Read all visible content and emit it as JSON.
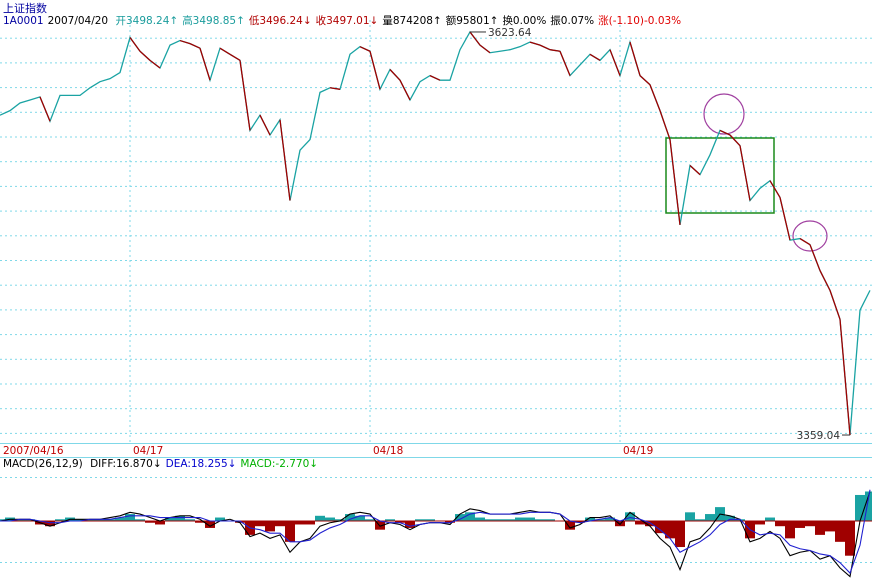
{
  "chart_data": [
    {
      "type": "line",
      "title": "上证指数",
      "code": "1A0001",
      "date": "2007/04/20",
      "quote": [
        {
          "text": "开3498.24↑",
          "color": "#1a9c9c"
        },
        {
          "text": "高3498.85↑",
          "color": "#1a9c9c"
        },
        {
          "text": "低3496.24↓",
          "color": "#b00000"
        },
        {
          "text": "收3497.01↓",
          "color": "#b00000"
        },
        {
          "text": "量874208↑",
          "color": "#000000"
        },
        {
          "text": "额95801↑",
          "color": "#000000"
        },
        {
          "text": "换0.00%",
          "color": "#000000"
        },
        {
          "text": "振0.07%",
          "color": "#000000"
        },
        {
          "text": "涨(-1.10)-0.03%",
          "color": "#e00000"
        }
      ],
      "day_labels": [
        {
          "label": "2007/04/16",
          "index": 0
        },
        {
          "label": "04/17",
          "index": 13
        },
        {
          "label": "04/18",
          "index": 37
        },
        {
          "label": "04/19",
          "index": 62
        }
      ],
      "high_label": "3623.64",
      "low_label": "3359.04",
      "up_color": "#1aa3a3",
      "down_color": "#a00000",
      "ylim": [
        3353.8,
        3631.5
      ],
      "values": [
        3569,
        3572,
        3577,
        3579,
        3581,
        3565,
        3582,
        3582,
        3582,
        3587,
        3591,
        3593,
        3597,
        3620,
        3611,
        3605,
        3600,
        3615,
        3618,
        3616,
        3613,
        3592,
        3613,
        3609,
        3605,
        3559,
        3569,
        3556,
        3566,
        3513,
        3546,
        3553,
        3584,
        3587,
        3586,
        3609,
        3614,
        3611,
        3586,
        3599,
        3592,
        3579,
        3591,
        3595,
        3592,
        3592,
        3612,
        3623.64,
        3615,
        3610,
        3611,
        3612,
        3614,
        3617,
        3615,
        3612,
        3611,
        3595,
        3602,
        3609,
        3605,
        3612,
        3595,
        3617,
        3595,
        3589,
        3572,
        3553,
        3497,
        3536,
        3530,
        3543,
        3559,
        3556,
        3549,
        3513,
        3521,
        3526,
        3515,
        3487,
        3488,
        3484,
        3467,
        3454,
        3435,
        3359.04,
        3441,
        3454
      ]
    },
    {
      "type": "macd",
      "title": "MACD(26,12,9)",
      "readouts": [
        {
          "text": "DIFF:16.870↓",
          "color": "#000000"
        },
        {
          "text": "DEA:18.255↓",
          "color": "#0000cc"
        },
        {
          "text": "MACD:-2.770↓",
          "color": "#00b000"
        }
      ],
      "up_color": "#1aa3a3",
      "down_color": "#a00000",
      "ylim": [
        -34,
        34
      ],
      "series": [
        {
          "name": "DIFF",
          "color": "#000000",
          "values": [
            0,
            1,
            1,
            1,
            -1,
            -3,
            -1,
            1,
            1,
            1,
            1,
            2,
            3,
            5,
            4,
            2,
            0,
            2,
            3,
            3,
            1,
            -3,
            0,
            1,
            -1,
            -9,
            -7,
            -10,
            -8,
            -18,
            -12,
            -10,
            -3,
            -1,
            0,
            4,
            5,
            4,
            -3,
            -1,
            -2,
            -5,
            -2,
            -1,
            -1,
            -2,
            4,
            7,
            6,
            4,
            4,
            4,
            5,
            6,
            5,
            5,
            4,
            -4,
            -2,
            2,
            2,
            3,
            -2,
            5,
            1,
            -3,
            -10,
            -15,
            -28,
            -12,
            -10,
            -4,
            4,
            3,
            1,
            -12,
            -10,
            -6,
            -10,
            -20,
            -18,
            -17,
            -22,
            -20,
            -27,
            -32,
            0,
            17
          ]
        },
        {
          "name": "DEA",
          "color": "#2020d0",
          "values": [
            0,
            0,
            1,
            1,
            0,
            -1,
            -1,
            0,
            0,
            1,
            1,
            1,
            2,
            3,
            3,
            3,
            2,
            2,
            2,
            2,
            2,
            0,
            0,
            0,
            0,
            -4,
            -5,
            -7,
            -7,
            -12,
            -12,
            -11,
            -7,
            -4,
            -2,
            1,
            3,
            3,
            0,
            -1,
            -1,
            -3,
            -2,
            -1,
            -1,
            -1,
            1,
            4,
            5,
            4,
            4,
            4,
            4,
            5,
            5,
            5,
            4,
            0,
            -1,
            0,
            1,
            2,
            0,
            2,
            1,
            -1,
            -5,
            -10,
            -18,
            -15,
            -12,
            -8,
            -2,
            1,
            1,
            -5,
            -8,
            -7,
            -8,
            -14,
            -16,
            -17,
            -19,
            -20,
            -24,
            -30,
            -14,
            18
          ]
        }
      ],
      "values": [
        1,
        2,
        1,
        1,
        -2,
        -3,
        1,
        2,
        1,
        1,
        1,
        1,
        2,
        4,
        1,
        -1,
        -2,
        2,
        3,
        1,
        -1,
        -4,
        2,
        0,
        -1,
        -8,
        -3,
        -6,
        -3,
        -12,
        -2,
        -2,
        3,
        2,
        1,
        4,
        3,
        1,
        -5,
        1,
        -1,
        -4,
        1,
        1,
        0,
        -1,
        4,
        5,
        2,
        1,
        1,
        1,
        2,
        2,
        1,
        1,
        0,
        -5,
        -1,
        2,
        1,
        2,
        -3,
        5,
        -2,
        -3,
        -7,
        -10,
        -15,
        5,
        1,
        4,
        8,
        3,
        1,
        -10,
        -2,
        2,
        -3,
        -10,
        -4,
        -3,
        -8,
        -6,
        -12,
        -20,
        15,
        17
      ]
    }
  ]
}
